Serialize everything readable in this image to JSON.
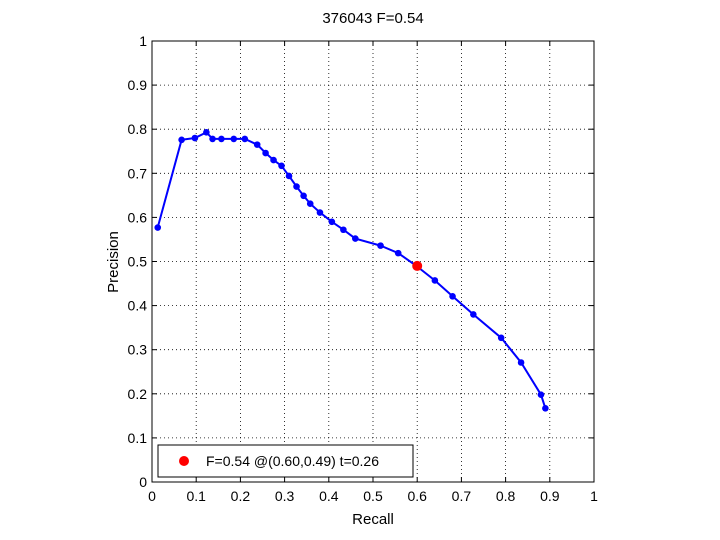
{
  "chart_data": {
    "type": "line",
    "title": "376043 F=0.54",
    "xlabel": "Recall",
    "ylabel": "Precision",
    "xlim": [
      0,
      1
    ],
    "ylim": [
      0,
      1
    ],
    "xticks": [
      "0",
      "0.1",
      "0.2",
      "0.3",
      "0.4",
      "0.5",
      "0.6",
      "0.7",
      "0.8",
      "0.9",
      "1"
    ],
    "yticks": [
      "0",
      "0.1",
      "0.2",
      "0.3",
      "0.4",
      "0.5",
      "0.6",
      "0.7",
      "0.8",
      "0.9",
      "1"
    ],
    "grid": "dotted",
    "series": [
      {
        "color": "#0000ff",
        "points": [
          [
            0.013,
            0.577
          ],
          [
            0.067,
            0.776
          ],
          [
            0.097,
            0.78
          ],
          [
            0.123,
            0.793
          ],
          [
            0.137,
            0.778
          ],
          [
            0.157,
            0.778
          ],
          [
            0.185,
            0.778
          ],
          [
            0.21,
            0.778
          ],
          [
            0.238,
            0.765
          ],
          [
            0.257,
            0.746
          ],
          [
            0.275,
            0.73
          ],
          [
            0.293,
            0.717
          ],
          [
            0.31,
            0.694
          ],
          [
            0.327,
            0.67
          ],
          [
            0.343,
            0.649
          ],
          [
            0.358,
            0.631
          ],
          [
            0.38,
            0.611
          ],
          [
            0.407,
            0.59
          ],
          [
            0.433,
            0.572
          ],
          [
            0.46,
            0.552
          ],
          [
            0.517,
            0.536
          ],
          [
            0.557,
            0.519
          ],
          [
            0.597,
            0.491
          ],
          [
            0.64,
            0.457
          ],
          [
            0.68,
            0.421
          ],
          [
            0.727,
            0.38
          ],
          [
            0.79,
            0.327
          ],
          [
            0.835,
            0.271
          ],
          [
            0.88,
            0.198
          ],
          [
            0.89,
            0.167
          ]
        ]
      }
    ],
    "best_point": {
      "recall": 0.6,
      "precision": 0.49,
      "color": "#ff0000"
    },
    "legend": {
      "position": "bottom-left",
      "label": "F=0.54 @(0.60,0.49) t=0.26"
    }
  }
}
